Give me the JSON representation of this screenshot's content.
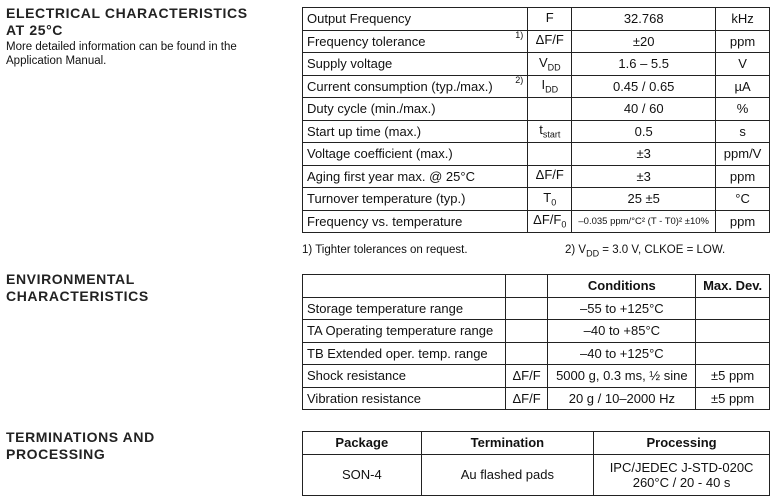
{
  "electrical": {
    "heading_line1": "ELECTRICAL CHARACTERISTICS",
    "heading_line2": "AT 25°C",
    "note": "More detailed information can be found in the Application Manual.",
    "rows": [
      {
        "param": "Output Frequency",
        "note": "",
        "sym": "F",
        "sub": "",
        "value": "32.768",
        "unit": "kHz"
      },
      {
        "param": "Frequency tolerance",
        "note": "1)",
        "sym": "ΔF/F",
        "sub": "",
        "value": "±20",
        "unit": "ppm"
      },
      {
        "param": "Supply voltage",
        "note": "",
        "sym": "V",
        "sub": "DD",
        "value": "1.6 – 5.5",
        "unit": "V"
      },
      {
        "param": "Current consumption (typ./max.)",
        "note": "2)",
        "sym": "I",
        "sub": "DD",
        "value": "0.45 / 0.65",
        "unit": "µA"
      },
      {
        "param": "Duty cycle (min./max.)",
        "note": "",
        "sym": "",
        "sub": "",
        "value": "40 / 60",
        "unit": "%"
      },
      {
        "param": "Start up time (max.)",
        "note": "",
        "sym": "t",
        "sub": "start",
        "value": "0.5",
        "unit": "s"
      },
      {
        "param": "Voltage coefficient (max.)",
        "note": "",
        "sym": "",
        "sub": "",
        "value": "±3",
        "unit": "ppm/V"
      },
      {
        "param": "Aging first year max. @ 25°C",
        "note": "",
        "sym": "ΔF/F",
        "sub": "",
        "value": "±3",
        "unit": "ppm"
      },
      {
        "param": "Turnover temperature (typ.)",
        "note": "",
        "sym": "T",
        "sub": "0",
        "value": "25 ±5",
        "unit": "°C"
      },
      {
        "param": "Frequency vs. temperature",
        "note": "",
        "sym": "ΔF/F",
        "sub": "0",
        "value": "–0.035 ppm/°C² (T - T0)² ±10%",
        "unit": "ppm"
      }
    ],
    "footnote1": "1) Tighter tolerances on request.",
    "footnote2": "2) VDD = 3.0 V, CLKOE = LOW."
  },
  "environmental": {
    "heading_line1": "ENVIRONMENTAL",
    "heading_line2": "CHARACTERISTICS",
    "col_conditions": "Conditions",
    "col_maxdev": "Max. Dev.",
    "rows": [
      {
        "param": "Storage temperature range",
        "sym": "",
        "cond": "–55 to +125°C",
        "dev": ""
      },
      {
        "param": "TA Operating temperature range",
        "sym": "",
        "cond": "–40 to +85°C",
        "dev": ""
      },
      {
        "param": "TB Extended oper. temp. range",
        "sym": "",
        "cond": "–40 to +125°C",
        "dev": ""
      },
      {
        "param": "Shock resistance",
        "sym": "ΔF/F",
        "cond": "5000 g, 0.3 ms, ½ sine",
        "dev": "±5 ppm"
      },
      {
        "param": "Vibration resistance",
        "sym": "ΔF/F",
        "cond": "20 g / 10–2000 Hz",
        "dev": "±5 ppm"
      }
    ]
  },
  "terminations": {
    "heading_line1": "TERMINATIONS AND",
    "heading_line2": "PROCESSING",
    "col_package": "Package",
    "col_termination": "Termination",
    "col_processing": "Processing",
    "package": "SON-4",
    "termination": "Au flashed pads",
    "processing_line1": "IPC/JEDEC J-STD-020C",
    "processing_line2": "260°C / 20 - 40 s"
  }
}
